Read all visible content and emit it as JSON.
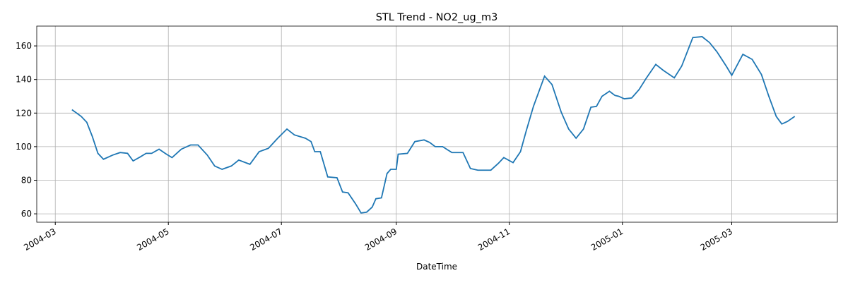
{
  "chart_data": {
    "type": "line",
    "title": "STL Trend - NO2_ug_m3",
    "xlabel": "DateTime",
    "x": [
      "2004-03-10",
      "2004-03-15",
      "2004-03-18",
      "2004-03-21",
      "2004-03-24",
      "2004-03-27",
      "2004-04-01",
      "2004-04-05",
      "2004-04-09",
      "2004-04-12",
      "2004-04-16",
      "2004-04-19",
      "2004-04-22",
      "2004-04-26",
      "2004-04-30",
      "2004-05-03",
      "2004-05-08",
      "2004-05-13",
      "2004-05-17",
      "2004-05-22",
      "2004-05-26",
      "2004-05-30",
      "2004-06-04",
      "2004-06-08",
      "2004-06-14",
      "2004-06-19",
      "2004-06-24",
      "2004-06-29",
      "2004-07-04",
      "2004-07-08",
      "2004-07-14",
      "2004-07-17",
      "2004-07-19",
      "2004-07-22",
      "2004-07-26",
      "2004-07-31",
      "2004-08-03",
      "2004-08-06",
      "2004-08-10",
      "2004-08-13",
      "2004-08-16",
      "2004-08-19",
      "2004-08-21",
      "2004-08-24",
      "2004-08-27",
      "2004-08-29",
      "2004-09-01",
      "2004-09-02",
      "2004-09-07",
      "2004-09-11",
      "2004-09-16",
      "2004-09-19",
      "2004-09-22",
      "2004-09-26",
      "2004-10-01",
      "2004-10-07",
      "2004-10-11",
      "2004-10-15",
      "2004-10-22",
      "2004-10-26",
      "2004-10-29",
      "2004-11-03",
      "2004-11-07",
      "2004-11-10",
      "2004-11-14",
      "2004-11-20",
      "2004-11-24",
      "2004-11-29",
      "2004-12-03",
      "2004-12-07",
      "2004-12-11",
      "2004-12-15",
      "2004-12-18",
      "2004-12-21",
      "2004-12-25",
      "2004-12-28",
      "2004-12-30",
      "2005-01-02",
      "2005-01-06",
      "2005-01-10",
      "2005-01-14",
      "2005-01-19",
      "2005-01-23",
      "2005-01-29",
      "2005-02-02",
      "2005-02-08",
      "2005-02-13",
      "2005-02-17",
      "2005-02-21",
      "2005-02-26",
      "2005-03-01",
      "2005-03-07",
      "2005-03-12",
      "2005-03-17",
      "2005-03-21",
      "2005-03-25",
      "2005-03-28",
      "2005-03-31",
      "2005-04-04"
    ],
    "series": [
      {
        "name": "trend",
        "color": "#1f77b4",
        "values": [
          122,
          118,
          114.5,
          106,
          96,
          92.5,
          95,
          96.5,
          96,
          91.5,
          94,
          96,
          96,
          98.5,
          95.5,
          93.5,
          98.5,
          101,
          101,
          95,
          88.5,
          86.5,
          88.5,
          92,
          89.5,
          97,
          99,
          105,
          110.5,
          107,
          105,
          103,
          97,
          97,
          82,
          81.5,
          73,
          72.5,
          66,
          60.5,
          61,
          64,
          69,
          69.5,
          84,
          86.5,
          86.5,
          95.5,
          96,
          103,
          104,
          102.5,
          100,
          100,
          96.5,
          96.5,
          87,
          86,
          86,
          90,
          93.5,
          90.5,
          97,
          109,
          124,
          142,
          137,
          120.5,
          110.5,
          105,
          110.5,
          123.5,
          124,
          130,
          133,
          130.5,
          130,
          128.5,
          129,
          134,
          141,
          149,
          145.5,
          141,
          148,
          165,
          165.5,
          162,
          156.5,
          148,
          142.5,
          155,
          152,
          143,
          130,
          118,
          113.5,
          115,
          118
        ]
      }
    ],
    "xlim": [
      "2004-02-20",
      "2005-04-27"
    ],
    "xticks": [
      {
        "value": "2004-03-01",
        "label": "2004-03"
      },
      {
        "value": "2004-05-01",
        "label": "2004-05"
      },
      {
        "value": "2004-07-01",
        "label": "2004-07"
      },
      {
        "value": "2004-09-01",
        "label": "2004-09"
      },
      {
        "value": "2004-11-01",
        "label": "2004-11"
      },
      {
        "value": "2005-01-01",
        "label": "2005-01"
      },
      {
        "value": "2005-03-01",
        "label": "2005-03"
      }
    ],
    "ylim": [
      55,
      171.8
    ],
    "yticks": [
      60,
      80,
      100,
      120,
      140,
      160
    ],
    "grid": true
  }
}
